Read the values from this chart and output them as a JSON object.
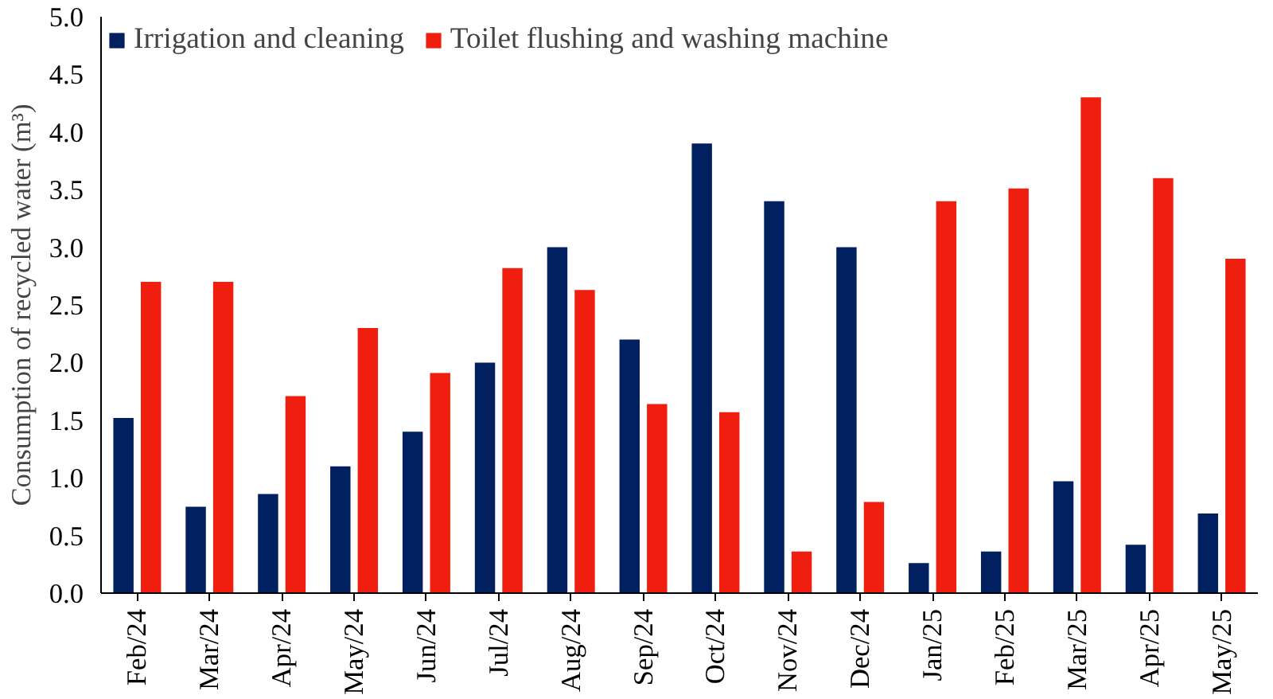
{
  "chart_data": {
    "type": "bar",
    "ylabel": "Consumption of recycled water (m³)",
    "categories": [
      "Feb/24",
      "Mar/24",
      "Apr/24",
      "May/24",
      "Jun/24",
      "Jul/24",
      "Aug/24",
      "Sep/24",
      "Oct/24",
      "Nov/24",
      "Dec/24",
      "Jan/25",
      "Feb/25",
      "Mar/25",
      "Apr/25",
      "May/25"
    ],
    "series": [
      {
        "name": "Irrigation and cleaning",
        "color": "#002060",
        "values": [
          1.52,
          0.75,
          0.86,
          1.1,
          1.4,
          2.0,
          3.0,
          2.2,
          3.9,
          3.4,
          3.0,
          0.26,
          0.36,
          0.97,
          0.42,
          0.69
        ]
      },
      {
        "name": "Toilet flushing and washing machine",
        "color": "#f01e0f",
        "values": [
          2.7,
          2.7,
          1.71,
          2.3,
          1.91,
          2.82,
          2.63,
          1.64,
          1.57,
          0.36,
          0.79,
          3.4,
          3.51,
          4.3,
          3.6,
          2.9
        ]
      }
    ],
    "ylim": [
      0,
      5
    ],
    "yticks": [
      {
        "value": 0,
        "label": "0.0"
      },
      {
        "value": 0.5,
        "label": "0.5"
      },
      {
        "value": 1,
        "label": "1.0"
      },
      {
        "value": 1.5,
        "label": "1.5"
      },
      {
        "value": 2,
        "label": "2.0"
      },
      {
        "value": 2.5,
        "label": "2.5"
      },
      {
        "value": 3,
        "label": "3.0"
      },
      {
        "value": 3.5,
        "label": "3.5"
      },
      {
        "value": 4,
        "label": "4.0"
      },
      {
        "value": 4.5,
        "label": "4.5"
      },
      {
        "value": 5,
        "label": "5.0"
      }
    ],
    "grid": false,
    "legend": "top left"
  }
}
